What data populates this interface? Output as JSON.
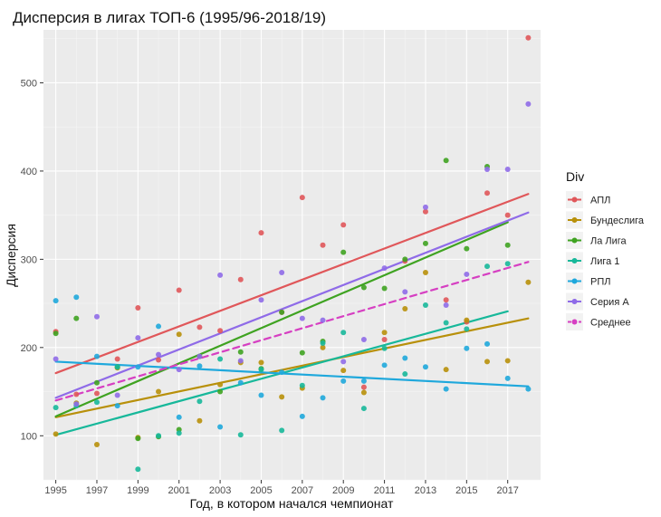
{
  "chart_data": {
    "type": "scatter",
    "title": "Дисперсия в лигах ТОП-6 (1995/96-2018/19)",
    "xlabel": "Год, в котором начался чемпионат",
    "ylabel": "Дисперсия",
    "xlim": [
      1994.4,
      2018.6
    ],
    "ylim": [
      50,
      560
    ],
    "xticks": [
      1995,
      1997,
      1999,
      2001,
      2003,
      2005,
      2007,
      2009,
      2011,
      2013,
      2015,
      2017
    ],
    "yticks": [
      100,
      200,
      300,
      400,
      500
    ],
    "grid": true,
    "legend": {
      "title": "Div",
      "position": "right"
    },
    "series": [
      {
        "name": "АПЛ",
        "color": "#e0575a",
        "points": [
          [
            1995,
            218
          ],
          [
            1996,
            147
          ],
          [
            1997,
            148
          ],
          [
            1998,
            187
          ],
          [
            1999,
            245
          ],
          [
            2000,
            186
          ],
          [
            2001,
            265
          ],
          [
            2002,
            223
          ],
          [
            2003,
            219
          ],
          [
            2004,
            277
          ],
          [
            2005,
            330
          ],
          [
            2006,
            240
          ],
          [
            2007,
            370
          ],
          [
            2008,
            316
          ],
          [
            2009,
            339
          ],
          [
            2010,
            155
          ],
          [
            2011,
            209
          ],
          [
            2012,
            298
          ],
          [
            2013,
            354
          ],
          [
            2014,
            254
          ],
          [
            2015,
            229
          ],
          [
            2016,
            375
          ],
          [
            2017,
            350
          ],
          [
            2018,
            551
          ]
        ],
        "trend": [
          [
            1995,
            171
          ],
          [
            2018,
            374
          ]
        ]
      },
      {
        "name": "Бундеслига",
        "color": "#b8900a",
        "points": [
          [
            1995,
            102
          ],
          [
            1996,
            137
          ],
          [
            1997,
            90
          ],
          [
            1998,
            177
          ],
          [
            1999,
            98
          ],
          [
            2000,
            150
          ],
          [
            2001,
            215
          ],
          [
            2002,
            117
          ],
          [
            2003,
            158
          ],
          [
            2004,
            183
          ],
          [
            2005,
            183
          ],
          [
            2006,
            144
          ],
          [
            2007,
            154
          ],
          [
            2008,
            200
          ],
          [
            2009,
            174
          ],
          [
            2010,
            149
          ],
          [
            2011,
            217
          ],
          [
            2012,
            244
          ],
          [
            2013,
            285
          ],
          [
            2014,
            175
          ],
          [
            2015,
            231
          ],
          [
            2016,
            184
          ],
          [
            2017,
            185
          ],
          [
            2018,
            274
          ]
        ],
        "trend": [
          [
            1995,
            121
          ],
          [
            2018,
            233
          ]
        ]
      },
      {
        "name": "Ла Лига",
        "color": "#3fa321",
        "points": [
          [
            1995,
            216
          ],
          [
            1996,
            233
          ],
          [
            1997,
            160
          ],
          [
            1998,
            178
          ],
          [
            1999,
            97
          ],
          [
            2000,
            99
          ],
          [
            2001,
            107
          ],
          [
            2002,
            190
          ],
          [
            2003,
            150
          ],
          [
            2004,
            195
          ],
          [
            2005,
            176
          ],
          [
            2006,
            240
          ],
          [
            2007,
            194
          ],
          [
            2008,
            207
          ],
          [
            2009,
            308
          ],
          [
            2010,
            268
          ],
          [
            2011,
            267
          ],
          [
            2012,
            300
          ],
          [
            2013,
            318
          ],
          [
            2014,
            412
          ],
          [
            2015,
            312
          ],
          [
            2016,
            405
          ],
          [
            2017,
            316
          ]
        ],
        "trend": [
          [
            1995,
            122
          ],
          [
            2017,
            342
          ]
        ]
      },
      {
        "name": "Лига 1",
        "color": "#17b89a",
        "points": [
          [
            1995,
            132
          ],
          [
            1996,
            134
          ],
          [
            1997,
            138
          ],
          [
            1998,
            178
          ],
          [
            1999,
            62
          ],
          [
            2000,
            100
          ],
          [
            2001,
            103
          ],
          [
            2002,
            139
          ],
          [
            2003,
            187
          ],
          [
            2004,
            101
          ],
          [
            2005,
            175
          ],
          [
            2006,
            106
          ],
          [
            2007,
            157
          ],
          [
            2008,
            205
          ],
          [
            2009,
            217
          ],
          [
            2010,
            131
          ],
          [
            2011,
            199
          ],
          [
            2012,
            170
          ],
          [
            2013,
            248
          ],
          [
            2014,
            228
          ],
          [
            2015,
            221
          ],
          [
            2016,
            292
          ],
          [
            2017,
            295
          ]
        ],
        "trend": [
          [
            1995,
            101
          ],
          [
            2017,
            241
          ]
        ]
      },
      {
        "name": "РПЛ",
        "color": "#1fa8dc",
        "points": [
          [
            1995,
            253
          ],
          [
            1996,
            257
          ],
          [
            1997,
            190
          ],
          [
            1998,
            134
          ],
          [
            1999,
            178
          ],
          [
            2000,
            224
          ],
          [
            2001,
            121
          ],
          [
            2002,
            179
          ],
          [
            2003,
            110
          ],
          [
            2004,
            160
          ],
          [
            2005,
            146
          ],
          [
            2006,
            172
          ],
          [
            2007,
            122
          ],
          [
            2008,
            143
          ],
          [
            2009,
            162
          ],
          [
            2010,
            162
          ],
          [
            2011,
            180
          ],
          [
            2012,
            188
          ],
          [
            2013,
            178
          ],
          [
            2014,
            153
          ],
          [
            2015,
            199
          ],
          [
            2016,
            204
          ],
          [
            2017,
            165
          ],
          [
            2018,
            153
          ]
        ],
        "trend": [
          [
            1995,
            184
          ],
          [
            2018,
            156
          ]
        ]
      },
      {
        "name": "Серия А",
        "color": "#8f6be8",
        "points": [
          [
            1995,
            187
          ],
          [
            1996,
            136
          ],
          [
            1997,
            235
          ],
          [
            1998,
            146
          ],
          [
            1999,
            211
          ],
          [
            2000,
            192
          ],
          [
            2001,
            175
          ],
          [
            2002,
            190
          ],
          [
            2003,
            282
          ],
          [
            2004,
            185
          ],
          [
            2005,
            254
          ],
          [
            2006,
            285
          ],
          [
            2007,
            233
          ],
          [
            2008,
            231
          ],
          [
            2009,
            184
          ],
          [
            2010,
            209
          ],
          [
            2011,
            290
          ],
          [
            2012,
            263
          ],
          [
            2013,
            359
          ],
          [
            2014,
            248
          ],
          [
            2015,
            283
          ],
          [
            2016,
            402
          ],
          [
            2017,
            402
          ],
          [
            2018,
            476
          ]
        ],
        "trend": [
          [
            1995,
            143
          ],
          [
            2018,
            353
          ]
        ]
      },
      {
        "name": "Среднее",
        "color": "#d63fc2",
        "dashed": true,
        "points": [],
        "trend": [
          [
            1995,
            140
          ],
          [
            2018,
            297
          ]
        ]
      }
    ]
  }
}
